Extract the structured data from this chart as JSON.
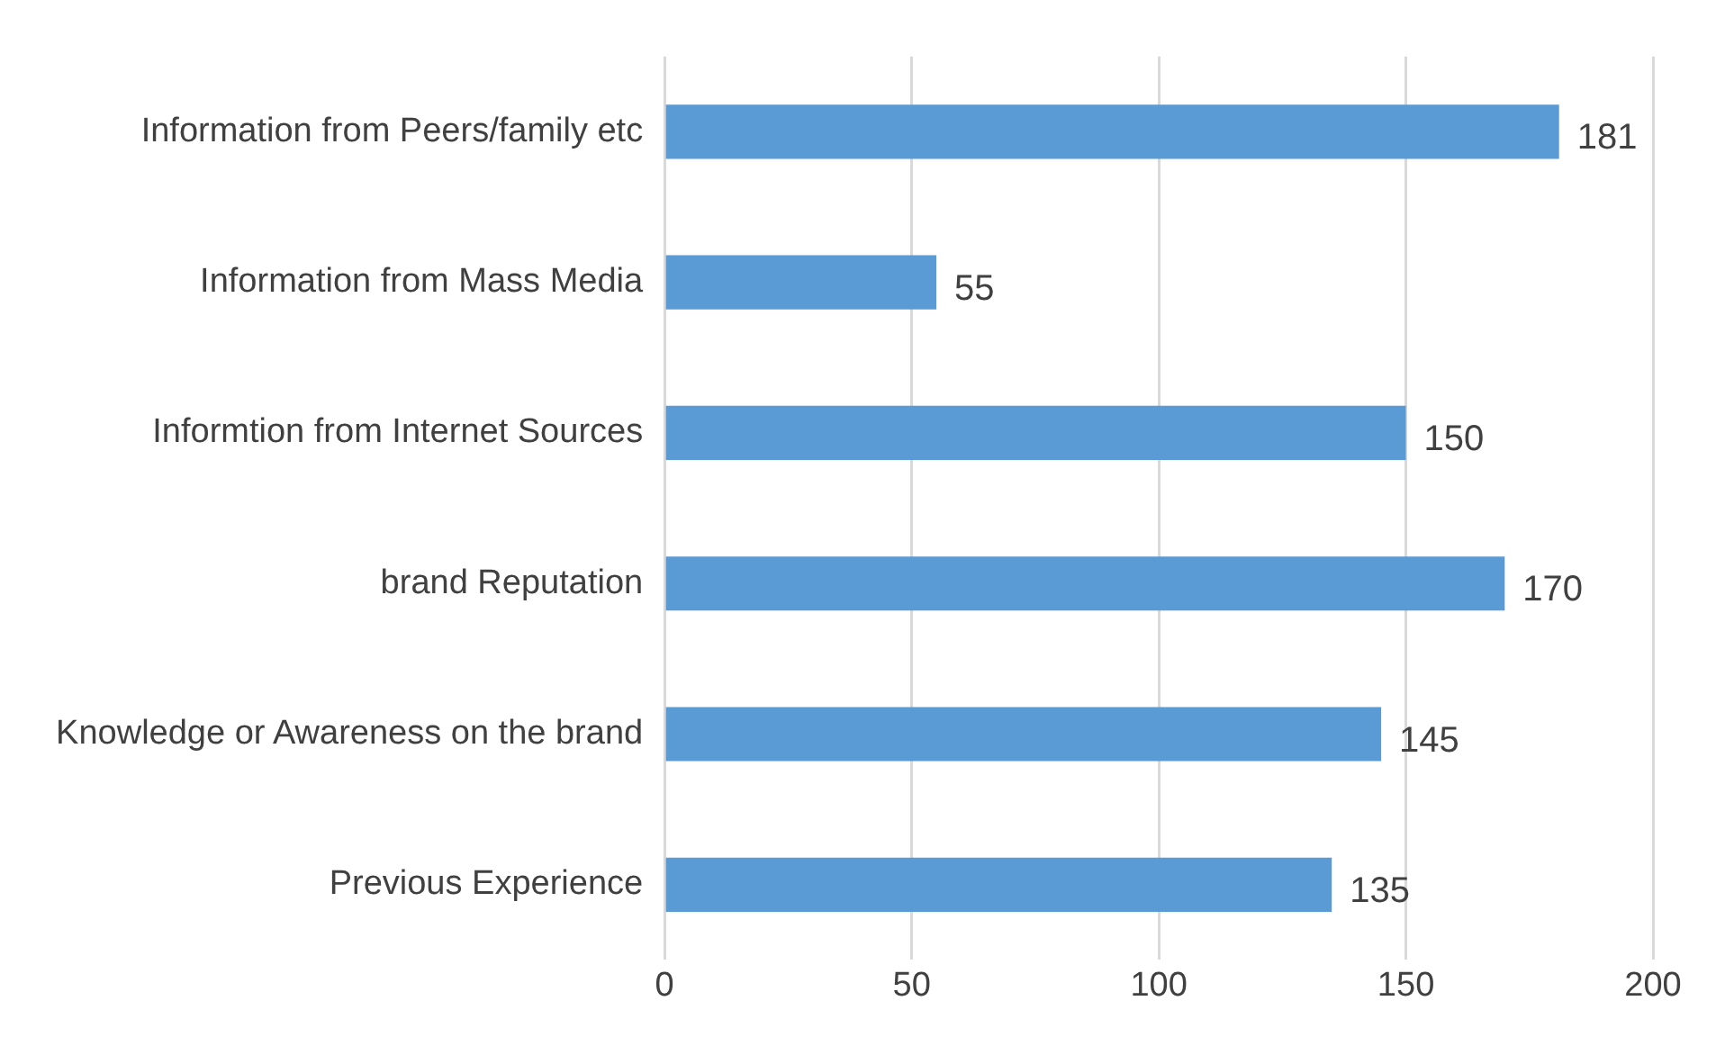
{
  "chart_data": {
    "type": "bar",
    "orientation": "horizontal",
    "categories": [
      "Information from Peers/family etc",
      "Information from Mass Media",
      "Informtion from Internet Sources",
      "brand Reputation",
      "Knowledge or Awareness on the brand",
      "Previous Experience"
    ],
    "values": [
      181,
      55,
      150,
      170,
      145,
      135
    ],
    "color": "#5b9bd5",
    "xlim": [
      0,
      200
    ],
    "xticks": [
      0,
      50,
      100,
      150,
      200
    ],
    "grid": "x",
    "data_labels": true
  }
}
